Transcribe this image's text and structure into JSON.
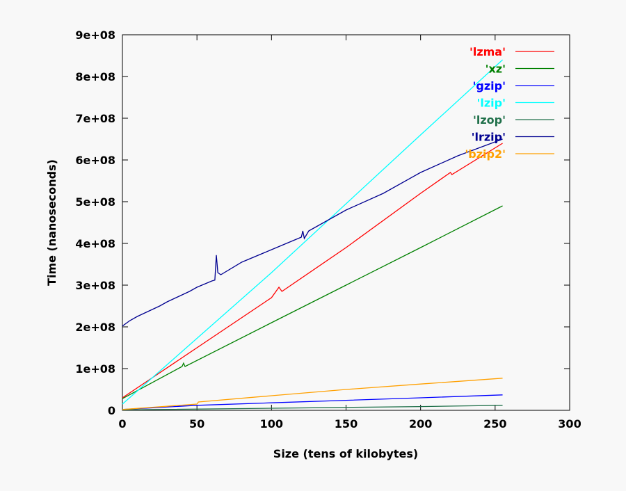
{
  "chart_data": {
    "type": "line",
    "xlabel": "Size (tens of kilobytes)",
    "ylabel": "Time (nanoseconds)",
    "xlim": [
      0,
      300
    ],
    "ylim": [
      0,
      900000000
    ],
    "xticks": [
      0,
      50,
      100,
      150,
      200,
      250,
      300
    ],
    "xtick_labels": [
      "0",
      "50",
      "100",
      "150",
      "200",
      "250",
      "300"
    ],
    "yticks": [
      0,
      100000000,
      200000000,
      300000000,
      400000000,
      500000000,
      600000000,
      700000000,
      800000000,
      900000000
    ],
    "ytick_labels": [
      "0",
      "1e+08",
      "2e+08",
      "3e+08",
      "4e+08",
      "5e+08",
      "6e+08",
      "7e+08",
      "8e+08",
      "9e+08"
    ],
    "grid": false,
    "legend_placement": "top-right",
    "series": [
      {
        "name": "'lzma'",
        "color": "#ff0000",
        "points": [
          [
            0,
            30000000
          ],
          [
            50,
            150000000
          ],
          [
            100,
            270000000
          ],
          [
            105,
            295000000
          ],
          [
            107,
            285000000
          ],
          [
            150,
            390000000
          ],
          [
            200,
            520000000
          ],
          [
            220,
            570000000
          ],
          [
            221,
            565000000
          ],
          [
            255,
            640000000
          ]
        ]
      },
      {
        "name": "'xz'",
        "color": "#008000",
        "points": [
          [
            0,
            28000000
          ],
          [
            40,
            105000000
          ],
          [
            41,
            113000000
          ],
          [
            42,
            105000000
          ],
          [
            100,
            210000000
          ],
          [
            150,
            300000000
          ],
          [
            200,
            390000000
          ],
          [
            255,
            490000000
          ]
        ]
      },
      {
        "name": "'gzip'",
        "color": "#0000ff",
        "points": [
          [
            0,
            2000000
          ],
          [
            50,
            12000000
          ],
          [
            100,
            18000000
          ],
          [
            150,
            24000000
          ],
          [
            200,
            30000000
          ],
          [
            255,
            37000000
          ]
        ]
      },
      {
        "name": "'lzip'",
        "color": "#00ffff",
        "points": [
          [
            0,
            15000000
          ],
          [
            100,
            330000000
          ],
          [
            200,
            660000000
          ],
          [
            255,
            840000000
          ]
        ]
      },
      {
        "name": "'lzop'",
        "color": "#20704a",
        "points": [
          [
            0,
            1000000
          ],
          [
            100,
            5000000
          ],
          [
            200,
            9000000
          ],
          [
            255,
            12000000
          ]
        ]
      },
      {
        "name": "'lrzip'",
        "color": "#000090",
        "points": [
          [
            0,
            202000000
          ],
          [
            5,
            215000000
          ],
          [
            10,
            225000000
          ],
          [
            25,
            250000000
          ],
          [
            30,
            260000000
          ],
          [
            45,
            285000000
          ],
          [
            50,
            295000000
          ],
          [
            60,
            310000000
          ],
          [
            62,
            312000000
          ],
          [
            63,
            372000000
          ],
          [
            64,
            330000000
          ],
          [
            66,
            325000000
          ],
          [
            80,
            355000000
          ],
          [
            100,
            385000000
          ],
          [
            120,
            415000000
          ],
          [
            121,
            430000000
          ],
          [
            122,
            412000000
          ],
          [
            125,
            430000000
          ],
          [
            150,
            480000000
          ],
          [
            175,
            520000000
          ],
          [
            200,
            570000000
          ],
          [
            225,
            610000000
          ],
          [
            255,
            650000000
          ]
        ]
      },
      {
        "name": "'bzip2'",
        "color": "#ffa000",
        "points": [
          [
            0,
            2000000
          ],
          [
            50,
            15000000
          ],
          [
            51,
            20000000
          ],
          [
            100,
            35000000
          ],
          [
            150,
            50000000
          ],
          [
            200,
            63000000
          ],
          [
            255,
            77000000
          ]
        ]
      }
    ]
  }
}
